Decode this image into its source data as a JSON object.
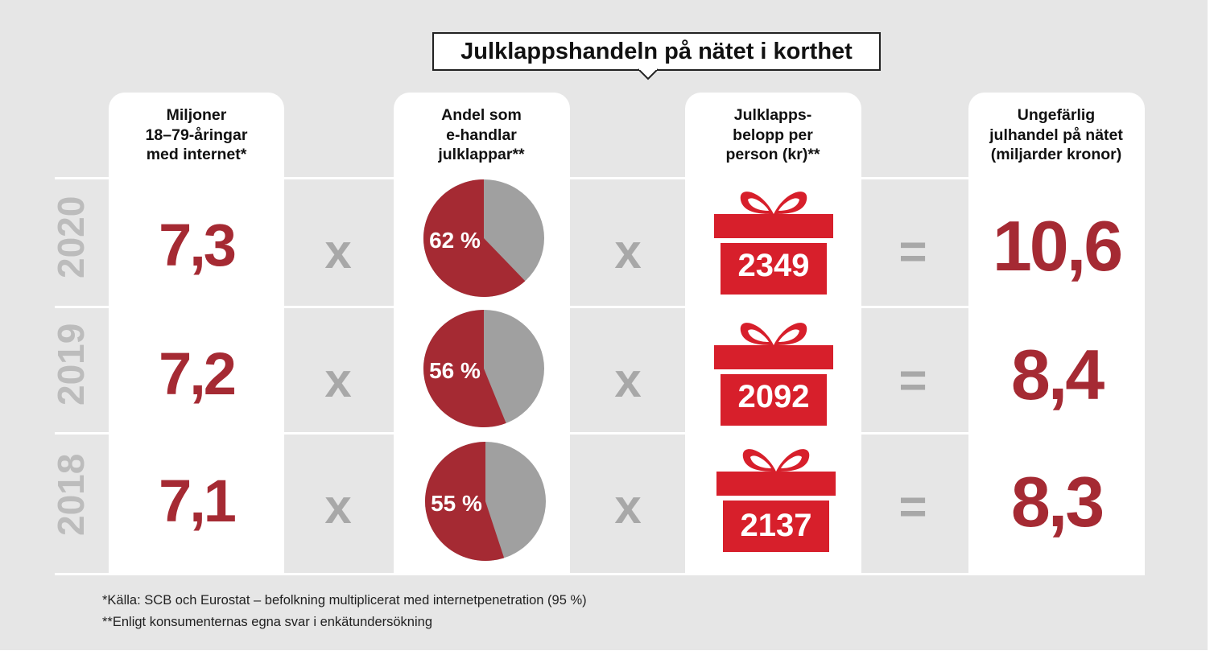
{
  "title": "Julklappshandeln på nätet i korthet",
  "headers": {
    "internet_users": "Miljoner\n18–79-åringar\nmed internet*",
    "share_online": "Andel som\ne-handlar\njulklappar**",
    "amount": "Julklapps-\nbelopp per\nperson (kr)**",
    "total": "Ungefärlig\njulhandel på nätet\n(miljarder kronor)"
  },
  "operators": {
    "multiply": "x",
    "equals": "="
  },
  "footnotes": [
    "*Källa: SCB och Eurostat – befolkning multiplicerat med internetpenetration (95 %)",
    "**Enligt konsumenternas egna svar i enkätundersökning"
  ],
  "colors": {
    "accent": "#a52a33",
    "pie_rest": "#a0a0a0",
    "gift": "#d71f2b",
    "operator": "#a8a8a8",
    "year": "#bcbcbc",
    "background": "#e6e6e6"
  },
  "chart_data": {
    "type": "table",
    "rows": [
      {
        "year": "2020",
        "internet_users": "7,3",
        "share_online_label": "62 %",
        "share_online": 62,
        "amount": "2349",
        "total": "10,6"
      },
      {
        "year": "2019",
        "internet_users": "7,2",
        "share_online_label": "56 %",
        "share_online": 56,
        "amount": "2092",
        "total": "8,4"
      },
      {
        "year": "2018",
        "internet_users": "7,1",
        "share_online_label": "55 %",
        "share_online": 55,
        "amount": "2137",
        "total": "8,3"
      }
    ]
  }
}
